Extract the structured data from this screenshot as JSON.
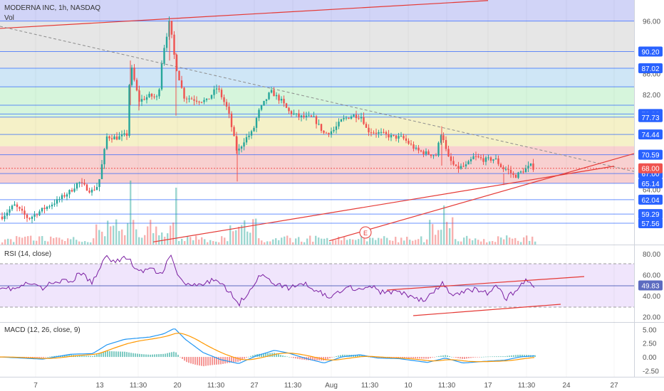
{
  "header": {
    "symbol_line": "MODERNA INC, 1h, NASDAQ",
    "volume_label": "Vol"
  },
  "colors": {
    "up": "#26a69a",
    "down": "#ef5350",
    "rsi_line": "#7b1fa2",
    "macd_line": "#2196f3",
    "signal_line": "#ff9800",
    "level_line": "#2962ff",
    "trend_line": "#e53935",
    "current_price": "#ef5350"
  },
  "chart_data": [
    {
      "type": "candlestick",
      "title": "MODERNA INC, 1h, NASDAQ",
      "ylim": [
        53.5,
        100
      ],
      "y_ticks": [
        64.0,
        82.0,
        86.0,
        96.0
      ],
      "price_levels": [
        96.0,
        90.2,
        87.02,
        83.5,
        80.0,
        78.32,
        77.73,
        74.44,
        70.59,
        67.0,
        65.14,
        62.04,
        59.29,
        57.56
      ],
      "price_tags": [
        90.2,
        87.02,
        78.32,
        77.73,
        74.44,
        70.59,
        67.0,
        65.14,
        62.04,
        59.29,
        57.56
      ],
      "current_price": 68.0,
      "event_marker": "E",
      "x_tick_labels": [
        "7",
        "13",
        "11:30",
        "20",
        "11:30",
        "27",
        "11:30",
        "Aug",
        "11:30",
        "10",
        "11:30",
        "17",
        "11:30",
        "24",
        "27"
      ],
      "volume_label": "Vol"
    },
    {
      "type": "line",
      "title": "RSI (14, close)",
      "ylim": [
        15,
        88
      ],
      "y_ticks": [
        20.0,
        40.0,
        60.0,
        80.0
      ],
      "upper_band": 70,
      "lower_band": 30,
      "current_value": 49.83
    },
    {
      "type": "line",
      "title": "MACD (12, 26, close, 9)",
      "ylim": [
        -3.6,
        6.2
      ],
      "y_ticks": [
        -2.5,
        0.0,
        2.5,
        5.0
      ],
      "series": []
    }
  ]
}
